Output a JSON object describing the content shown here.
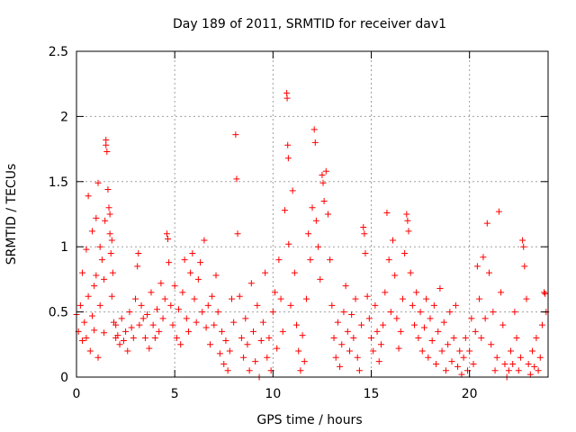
{
  "chart_data": {
    "type": "scatter",
    "title": "Day 189 of 2011, SRMTID for receiver dav1",
    "xlabel": "GPS time / hours",
    "ylabel": "SRMTID / TECUs",
    "xlim": [
      0,
      24
    ],
    "ylim": [
      0,
      2.5
    ],
    "xticks": [
      0,
      5,
      10,
      15,
      20
    ],
    "xtick_labels": [
      "0",
      "5",
      "10",
      "15",
      "20"
    ],
    "yticks": [
      0,
      0.5,
      1,
      1.5,
      2,
      2.5
    ],
    "ytick_labels": [
      "0",
      "0.5",
      "1",
      "1.5",
      "2",
      "2.5"
    ],
    "grid": true,
    "marker": "+",
    "marker_color": "#ff0000",
    "series": [
      {
        "name": "SRMTID",
        "points": [
          [
            0.0,
            0.48
          ],
          [
            0.1,
            0.35
          ],
          [
            0.2,
            0.55
          ],
          [
            0.3,
            0.28
          ],
          [
            0.4,
            0.42
          ],
          [
            0.5,
            0.3
          ],
          [
            0.6,
            0.62
          ],
          [
            0.7,
            0.2
          ],
          [
            0.8,
            0.47
          ],
          [
            0.9,
            0.36
          ],
          [
            1.0,
            0.78
          ],
          [
            1.1,
            0.15
          ],
          [
            1.2,
            0.55
          ],
          [
            1.3,
            0.9
          ],
          [
            1.4,
            0.34
          ],
          [
            1.5,
            1.78
          ],
          [
            1.55,
            1.73
          ],
          [
            1.6,
            1.44
          ],
          [
            1.65,
            1.3
          ],
          [
            1.7,
            1.1
          ],
          [
            1.75,
            0.95
          ],
          [
            1.8,
            0.62
          ],
          [
            1.9,
            0.42
          ],
          [
            2.0,
            0.3
          ],
          [
            0.3,
            0.8
          ],
          [
            0.5,
            0.98
          ],
          [
            0.6,
            1.39
          ],
          [
            0.8,
            1.12
          ],
          [
            0.9,
            0.7
          ],
          [
            1.0,
            1.22
          ],
          [
            1.1,
            1.49
          ],
          [
            1.2,
            1.0
          ],
          [
            1.4,
            0.75
          ],
          [
            1.45,
            1.2
          ],
          [
            1.5,
            1.82
          ],
          [
            1.7,
            1.25
          ],
          [
            1.8,
            1.05
          ],
          [
            1.85,
            0.8
          ],
          [
            2.0,
            0.4
          ],
          [
            2.1,
            0.32
          ],
          [
            2.2,
            0.25
          ],
          [
            2.3,
            0.45
          ],
          [
            2.4,
            0.28
          ],
          [
            2.5,
            0.35
          ],
          [
            2.6,
            0.2
          ],
          [
            2.7,
            0.5
          ],
          [
            2.8,
            0.38
          ],
          [
            2.9,
            0.3
          ],
          [
            3.0,
            0.6
          ],
          [
            3.1,
            0.85
          ],
          [
            3.15,
            0.95
          ],
          [
            3.2,
            0.4
          ],
          [
            3.3,
            0.55
          ],
          [
            3.4,
            0.45
          ],
          [
            3.5,
            0.3
          ],
          [
            3.6,
            0.48
          ],
          [
            3.7,
            0.22
          ],
          [
            3.8,
            0.65
          ],
          [
            3.9,
            0.4
          ],
          [
            4.0,
            0.3
          ],
          [
            4.1,
            0.52
          ],
          [
            4.2,
            0.35
          ],
          [
            4.3,
            0.72
          ],
          [
            4.4,
            0.45
          ],
          [
            4.5,
            0.6
          ],
          [
            4.6,
            1.1
          ],
          [
            4.65,
            1.06
          ],
          [
            4.7,
            0.88
          ],
          [
            4.8,
            0.55
          ],
          [
            4.9,
            0.4
          ],
          [
            5.0,
            0.7
          ],
          [
            5.1,
            0.3
          ],
          [
            5.2,
            0.52
          ],
          [
            5.3,
            0.25
          ],
          [
            5.4,
            0.65
          ],
          [
            5.5,
            0.9
          ],
          [
            5.6,
            0.45
          ],
          [
            5.7,
            0.35
          ],
          [
            5.8,
            0.8
          ],
          [
            5.9,
            0.95
          ],
          [
            6.0,
            0.6
          ],
          [
            6.1,
            0.42
          ],
          [
            6.2,
            0.75
          ],
          [
            6.3,
            0.88
          ],
          [
            6.4,
            0.5
          ],
          [
            6.5,
            1.05
          ],
          [
            6.6,
            0.38
          ],
          [
            6.7,
            0.55
          ],
          [
            6.8,
            0.25
          ],
          [
            6.9,
            0.62
          ],
          [
            7.0,
            0.4
          ],
          [
            7.1,
            0.78
          ],
          [
            7.2,
            0.5
          ],
          [
            7.3,
            0.18
          ],
          [
            7.4,
            0.35
          ],
          [
            7.5,
            0.1
          ],
          [
            7.6,
            0.28
          ],
          [
            7.7,
            0.05
          ],
          [
            7.8,
            0.2
          ],
          [
            7.9,
            0.6
          ],
          [
            8.0,
            0.42
          ],
          [
            8.1,
            1.86
          ],
          [
            8.15,
            1.52
          ],
          [
            8.2,
            1.1
          ],
          [
            8.3,
            0.62
          ],
          [
            8.4,
            0.3
          ],
          [
            8.5,
            0.15
          ],
          [
            8.6,
            0.45
          ],
          [
            8.7,
            0.25
          ],
          [
            8.8,
            0.05
          ],
          [
            8.9,
            0.72
          ],
          [
            9.0,
            0.35
          ],
          [
            9.1,
            0.12
          ],
          [
            9.2,
            0.55
          ],
          [
            9.3,
            0.0
          ],
          [
            9.4,
            0.28
          ],
          [
            9.5,
            0.42
          ],
          [
            9.6,
            0.8
          ],
          [
            9.7,
            0.15
          ],
          [
            9.8,
            0.3
          ],
          [
            9.9,
            0.05
          ],
          [
            10.0,
            0.5
          ],
          [
            10.1,
            0.65
          ],
          [
            10.2,
            0.22
          ],
          [
            10.3,
            0.9
          ],
          [
            10.4,
            0.6
          ],
          [
            10.5,
            0.35
          ],
          [
            10.6,
            1.28
          ],
          [
            10.7,
            2.18
          ],
          [
            10.72,
            2.14
          ],
          [
            10.75,
            1.78
          ],
          [
            10.78,
            1.68
          ],
          [
            10.8,
            1.02
          ],
          [
            10.9,
            0.55
          ],
          [
            11.0,
            1.43
          ],
          [
            11.1,
            0.8
          ],
          [
            11.2,
            0.4
          ],
          [
            11.3,
            0.2
          ],
          [
            11.4,
            0.05
          ],
          [
            11.5,
            0.32
          ],
          [
            11.6,
            0.12
          ],
          [
            11.7,
            0.6
          ],
          [
            11.8,
            1.1
          ],
          [
            11.9,
            0.9
          ],
          [
            12.0,
            1.3
          ],
          [
            12.1,
            1.9
          ],
          [
            12.15,
            1.8
          ],
          [
            12.2,
            1.2
          ],
          [
            12.3,
            1.0
          ],
          [
            12.4,
            0.75
          ],
          [
            12.5,
            1.55
          ],
          [
            12.55,
            1.49
          ],
          [
            12.6,
            1.35
          ],
          [
            12.7,
            1.58
          ],
          [
            12.8,
            1.25
          ],
          [
            12.9,
            0.9
          ],
          [
            13.0,
            0.55
          ],
          [
            13.1,
            0.3
          ],
          [
            13.2,
            0.15
          ],
          [
            13.3,
            0.42
          ],
          [
            13.4,
            0.08
          ],
          [
            13.5,
            0.25
          ],
          [
            13.6,
            0.5
          ],
          [
            13.7,
            0.7
          ],
          [
            13.8,
            0.35
          ],
          [
            13.9,
            0.2
          ],
          [
            14.0,
            0.48
          ],
          [
            14.1,
            0.3
          ],
          [
            14.2,
            0.6
          ],
          [
            14.3,
            0.15
          ],
          [
            14.4,
            0.05
          ],
          [
            14.5,
            0.4
          ],
          [
            14.6,
            1.15
          ],
          [
            14.65,
            1.1
          ],
          [
            14.7,
            0.95
          ],
          [
            14.8,
            0.62
          ],
          [
            14.9,
            0.45
          ],
          [
            15.0,
            0.3
          ],
          [
            15.1,
            0.2
          ],
          [
            15.2,
            0.55
          ],
          [
            15.3,
            0.35
          ],
          [
            15.4,
            0.12
          ],
          [
            15.5,
            0.25
          ],
          [
            15.6,
            0.4
          ],
          [
            15.7,
            0.65
          ],
          [
            15.8,
            1.26
          ],
          [
            15.9,
            0.9
          ],
          [
            16.0,
            0.5
          ],
          [
            16.1,
            1.05
          ],
          [
            16.2,
            0.78
          ],
          [
            16.3,
            0.45
          ],
          [
            16.4,
            0.22
          ],
          [
            16.5,
            0.35
          ],
          [
            16.6,
            0.6
          ],
          [
            16.7,
            0.95
          ],
          [
            16.8,
            1.25
          ],
          [
            16.85,
            1.2
          ],
          [
            16.9,
            1.12
          ],
          [
            17.0,
            0.8
          ],
          [
            17.1,
            0.55
          ],
          [
            17.2,
            0.4
          ],
          [
            17.3,
            0.65
          ],
          [
            17.4,
            0.3
          ],
          [
            17.5,
            0.5
          ],
          [
            17.6,
            0.2
          ],
          [
            17.7,
            0.38
          ],
          [
            17.8,
            0.6
          ],
          [
            17.9,
            0.15
          ],
          [
            18.0,
            0.45
          ],
          [
            18.1,
            0.28
          ],
          [
            18.2,
            0.55
          ],
          [
            18.3,
            0.1
          ],
          [
            18.4,
            0.35
          ],
          [
            18.5,
            0.68
          ],
          [
            18.6,
            0.2
          ],
          [
            18.7,
            0.42
          ],
          [
            18.8,
            0.05
          ],
          [
            18.9,
            0.25
          ],
          [
            19.0,
            0.5
          ],
          [
            19.1,
            0.12
          ],
          [
            19.2,
            0.3
          ],
          [
            19.3,
            0.55
          ],
          [
            19.4,
            0.08
          ],
          [
            19.5,
            0.2
          ],
          [
            19.6,
            0.02
          ],
          [
            19.7,
            0.15
          ],
          [
            19.8,
            0.3
          ],
          [
            19.9,
            0.05
          ],
          [
            20.0,
            0.2
          ],
          [
            20.1,
            0.45
          ],
          [
            20.2,
            0.1
          ],
          [
            20.3,
            0.35
          ],
          [
            20.4,
            0.85
          ],
          [
            20.5,
            0.6
          ],
          [
            20.6,
            0.3
          ],
          [
            20.7,
            0.92
          ],
          [
            20.8,
            0.45
          ],
          [
            20.9,
            1.18
          ],
          [
            21.0,
            0.8
          ],
          [
            21.1,
            0.25
          ],
          [
            21.2,
            0.5
          ],
          [
            21.3,
            0.05
          ],
          [
            21.4,
            0.15
          ],
          [
            21.5,
            1.27
          ],
          [
            21.6,
            0.65
          ],
          [
            21.7,
            0.4
          ],
          [
            21.8,
            0.1
          ],
          [
            21.9,
            0.0
          ],
          [
            22.0,
            0.05
          ],
          [
            22.1,
            0.2
          ],
          [
            22.2,
            0.1
          ],
          [
            22.3,
            0.5
          ],
          [
            22.4,
            0.3
          ],
          [
            22.5,
            0.05
          ],
          [
            22.6,
            0.15
          ],
          [
            22.7,
            1.05
          ],
          [
            22.75,
            1.0
          ],
          [
            22.8,
            0.85
          ],
          [
            22.9,
            0.6
          ],
          [
            23.0,
            0.1
          ],
          [
            23.1,
            0.02
          ],
          [
            23.2,
            0.2
          ],
          [
            23.3,
            0.08
          ],
          [
            23.4,
            0.3
          ],
          [
            23.5,
            0.05
          ],
          [
            23.6,
            0.15
          ],
          [
            23.7,
            0.4
          ],
          [
            23.8,
            0.65
          ],
          [
            23.85,
            0.64
          ],
          [
            23.9,
            0.5
          ]
        ]
      }
    ]
  }
}
